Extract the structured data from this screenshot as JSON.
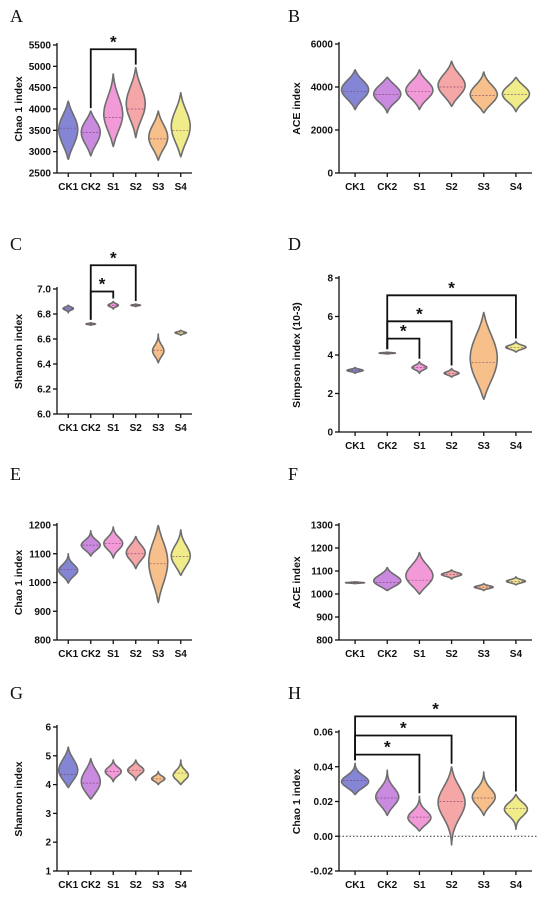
{
  "colors": {
    "CK1": "#8585d6",
    "CK2": "#c98ae0",
    "S1": "#f29ad8",
    "S2": "#f5a6a6",
    "S3": "#f7c08a",
    "S4": "#f0ec8a",
    "outline": "#6e6e6e"
  },
  "chart_data": [
    {
      "panel": "A",
      "type": "violin",
      "ylabel": "Chao 1 index",
      "categories": [
        "CK1",
        "CK2",
        "S1",
        "S2",
        "S3",
        "S4"
      ],
      "ylim": [
        2500,
        5500
      ],
      "yticks": [
        2500,
        3000,
        3500,
        4000,
        4500,
        5000,
        5500
      ],
      "violins": [
        {
          "name": "CK1",
          "min": 2820,
          "max": 4180,
          "median": 3550,
          "modes": [
            {
              "y": 3250,
              "w": 0.8
            },
            {
              "y": 3700,
              "w": 1.0
            }
          ]
        },
        {
          "name": "CK2",
          "min": 2900,
          "max": 3950,
          "median": 3450,
          "modes": [
            {
              "y": 3250,
              "w": 0.7
            },
            {
              "y": 3600,
              "w": 0.9
            }
          ]
        },
        {
          "name": "S1",
          "min": 3120,
          "max": 4820,
          "median": 3800,
          "modes": [
            {
              "y": 3700,
              "w": 1.0
            },
            {
              "y": 4150,
              "w": 0.6
            }
          ]
        },
        {
          "name": "S2",
          "min": 3330,
          "max": 4970,
          "median": 4000,
          "modes": [
            {
              "y": 3950,
              "w": 1.0
            },
            {
              "y": 4400,
              "w": 0.7
            }
          ]
        },
        {
          "name": "S3",
          "min": 2800,
          "max": 3950,
          "median": 3300,
          "modes": [
            {
              "y": 3200,
              "w": 1.0
            },
            {
              "y": 3550,
              "w": 0.7
            }
          ]
        },
        {
          "name": "S4",
          "min": 2880,
          "max": 4380,
          "median": 3500,
          "modes": [
            {
              "y": 3350,
              "w": 0.9
            },
            {
              "y": 3800,
              "w": 0.9
            }
          ]
        }
      ],
      "significance": [
        {
          "from": "CK2",
          "to": "S2",
          "label": "*",
          "level": 5400
        }
      ]
    },
    {
      "panel": "B",
      "type": "violin",
      "ylabel": "ACE index",
      "categories": [
        "CK1",
        "CK2",
        "S1",
        "S2",
        "S3",
        "S4"
      ],
      "ylim": [
        0,
        6000
      ],
      "yticks": [
        0,
        2000,
        4000,
        6000
      ],
      "violins": [
        {
          "name": "CK1",
          "min": 2950,
          "max": 4800,
          "median": 3800,
          "modes": [
            {
              "y": 3600,
              "w": 0.9
            },
            {
              "y": 4100,
              "w": 1.0
            }
          ]
        },
        {
          "name": "CK2",
          "min": 2800,
          "max": 4450,
          "median": 3650,
          "modes": [
            {
              "y": 3500,
              "w": 1.0
            },
            {
              "y": 4000,
              "w": 0.8
            }
          ]
        },
        {
          "name": "S1",
          "min": 2950,
          "max": 4800,
          "median": 3800,
          "modes": [
            {
              "y": 3650,
              "w": 1.0
            },
            {
              "y": 4100,
              "w": 0.8
            }
          ]
        },
        {
          "name": "S2",
          "min": 3100,
          "max": 5200,
          "median": 4000,
          "modes": [
            {
              "y": 3800,
              "w": 1.0
            },
            {
              "y": 4400,
              "w": 0.8
            }
          ]
        },
        {
          "name": "S3",
          "min": 2800,
          "max": 4700,
          "median": 3600,
          "modes": [
            {
              "y": 3400,
              "w": 1.0
            },
            {
              "y": 3900,
              "w": 0.8
            }
          ]
        },
        {
          "name": "S4",
          "min": 2850,
          "max": 4450,
          "median": 3650,
          "modes": [
            {
              "y": 3500,
              "w": 1.0
            },
            {
              "y": 3950,
              "w": 0.8
            }
          ]
        }
      ],
      "significance": []
    },
    {
      "panel": "C",
      "type": "violin",
      "ylabel": "Shannon index",
      "categories": [
        "CK1",
        "CK2",
        "S1",
        "S2",
        "S3",
        "S4"
      ],
      "ylim": [
        6.0,
        7.0
      ],
      "yticks": [
        6.0,
        6.2,
        6.4,
        6.6,
        6.8,
        7.0
      ],
      "tickdecimals": 1,
      "violins": [
        {
          "name": "CK1",
          "min": 6.81,
          "max": 6.87,
          "median": 6.84,
          "modes": [
            {
              "y": 6.845,
              "w": 1.0
            }
          ],
          "scale": 0.55
        },
        {
          "name": "CK2",
          "min": 6.71,
          "max": 6.73,
          "median": 6.72,
          "modes": [
            {
              "y": 6.72,
              "w": 1.0
            }
          ],
          "scale": 0.5
        },
        {
          "name": "S1",
          "min": 6.84,
          "max": 6.9,
          "median": 6.87,
          "modes": [
            {
              "y": 6.87,
              "w": 1.0
            }
          ],
          "scale": 0.55
        },
        {
          "name": "S2",
          "min": 6.86,
          "max": 6.88,
          "median": 6.87,
          "modes": [
            {
              "y": 6.87,
              "w": 1.0
            }
          ],
          "scale": 0.5
        },
        {
          "name": "S3",
          "min": 6.41,
          "max": 6.64,
          "median": 6.51,
          "modes": [
            {
              "y": 6.5,
              "w": 1.0
            }
          ],
          "scale": 0.6
        },
        {
          "name": "S4",
          "min": 6.63,
          "max": 6.67,
          "median": 6.65,
          "modes": [
            {
              "y": 6.65,
              "w": 1.0
            }
          ],
          "scale": 0.6
        }
      ],
      "significance": [
        {
          "from": "CK2",
          "to": "S2",
          "label": "*",
          "level": 7.19
        },
        {
          "from": "CK2",
          "to": "S1",
          "label": "*",
          "level": 6.98
        }
      ]
    },
    {
      "panel": "D",
      "type": "violin",
      "ylabel": "Simpson index  (10-3)",
      "categories": [
        "CK1",
        "CK2",
        "S1",
        "S2",
        "S3",
        "S4"
      ],
      "ylim": [
        0,
        8
      ],
      "yticks": [
        0,
        2,
        4,
        6,
        8
      ],
      "violins": [
        {
          "name": "CK1",
          "min": 3.05,
          "max": 3.35,
          "median": 3.2,
          "modes": [
            {
              "y": 3.2,
              "w": 1.0
            }
          ],
          "scale": 0.6
        },
        {
          "name": "CK2",
          "min": 4.05,
          "max": 4.15,
          "median": 4.1,
          "modes": [
            {
              "y": 4.1,
              "w": 1.0
            }
          ],
          "scale": 0.6
        },
        {
          "name": "S1",
          "min": 3.05,
          "max": 3.65,
          "median": 3.35,
          "modes": [
            {
              "y": 3.35,
              "w": 1.0
            }
          ],
          "scale": 0.55
        },
        {
          "name": "S2",
          "min": 2.85,
          "max": 3.3,
          "median": 3.05,
          "modes": [
            {
              "y": 3.05,
              "w": 1.0
            }
          ],
          "scale": 0.55
        },
        {
          "name": "S3",
          "min": 1.7,
          "max": 6.2,
          "median": 3.6,
          "modes": [
            {
              "y": 3.1,
              "w": 0.9
            },
            {
              "y": 4.6,
              "w": 0.8
            }
          ]
        },
        {
          "name": "S4",
          "min": 4.15,
          "max": 4.7,
          "median": 4.4,
          "modes": [
            {
              "y": 4.4,
              "w": 1.0
            }
          ],
          "scale": 0.75
        }
      ],
      "significance": [
        {
          "from": "CK2",
          "to": "S4",
          "label": "*",
          "level": 7.1
        },
        {
          "from": "CK2",
          "to": "S2",
          "label": "*",
          "level": 5.75
        },
        {
          "from": "CK2",
          "to": "S1",
          "label": "*",
          "level": 4.85
        }
      ]
    },
    {
      "panel": "E",
      "type": "violin",
      "ylabel": "Chao 1 index",
      "categories": [
        "CK1",
        "CK2",
        "S1",
        "S2",
        "S3",
        "S4"
      ],
      "ylim": [
        800,
        1200
      ],
      "yticks": [
        800,
        900,
        1000,
        1100,
        1200
      ],
      "violins": [
        {
          "name": "CK1",
          "min": 998,
          "max": 1100,
          "median": 1045,
          "modes": [
            {
              "y": 1040,
              "w": 1.0
            }
          ]
        },
        {
          "name": "CK2",
          "min": 1092,
          "max": 1180,
          "median": 1130,
          "modes": [
            {
              "y": 1128,
              "w": 1.0
            }
          ]
        },
        {
          "name": "S1",
          "min": 1085,
          "max": 1193,
          "median": 1135,
          "modes": [
            {
              "y": 1135,
              "w": 1.0
            }
          ]
        },
        {
          "name": "S2",
          "min": 1048,
          "max": 1160,
          "median": 1100,
          "modes": [
            {
              "y": 1090,
              "w": 0.9
            },
            {
              "y": 1120,
              "w": 0.8
            }
          ]
        },
        {
          "name": "S3",
          "min": 930,
          "max": 1198,
          "median": 1065,
          "modes": [
            {
              "y": 1020,
              "w": 0.8
            },
            {
              "y": 1110,
              "w": 1.0
            }
          ]
        },
        {
          "name": "S4",
          "min": 1025,
          "max": 1183,
          "median": 1090,
          "modes": [
            {
              "y": 1070,
              "w": 0.9
            },
            {
              "y": 1110,
              "w": 0.8
            }
          ]
        }
      ],
      "significance": []
    },
    {
      "panel": "F",
      "type": "violin",
      "ylabel": "ACE index",
      "categories": [
        "CK1",
        "CK2",
        "S1",
        "S2",
        "S3",
        "S4"
      ],
      "ylim": [
        800,
        1300
      ],
      "yticks": [
        800,
        900,
        1000,
        1100,
        1200,
        1300
      ],
      "violins": [
        {
          "name": "CK1",
          "min": 1045,
          "max": 1053,
          "median": 1049,
          "modes": [
            {
              "y": 1049,
              "w": 1.0
            }
          ],
          "scale": 0.7
        },
        {
          "name": "CK2",
          "min": 1015,
          "max": 1115,
          "median": 1050,
          "modes": [
            {
              "y": 1045,
              "w": 1.0
            },
            {
              "y": 1075,
              "w": 0.6
            }
          ]
        },
        {
          "name": "S1",
          "min": 1000,
          "max": 1180,
          "median": 1060,
          "modes": [
            {
              "y": 1055,
              "w": 1.0
            },
            {
              "y": 1110,
              "w": 0.7
            }
          ]
        },
        {
          "name": "S2",
          "min": 1065,
          "max": 1105,
          "median": 1085,
          "modes": [
            {
              "y": 1085,
              "w": 1.0
            }
          ],
          "scale": 0.75
        },
        {
          "name": "S3",
          "min": 1015,
          "max": 1045,
          "median": 1030,
          "modes": [
            {
              "y": 1030,
              "w": 1.0
            }
          ],
          "scale": 0.7
        },
        {
          "name": "S4",
          "min": 1040,
          "max": 1075,
          "median": 1055,
          "modes": [
            {
              "y": 1055,
              "w": 1.0
            }
          ],
          "scale": 0.7
        }
      ],
      "significance": []
    },
    {
      "panel": "G",
      "type": "violin",
      "ylabel": "Shannon index",
      "categories": [
        "CK1",
        "CK2",
        "S1",
        "S2",
        "S3",
        "S4"
      ],
      "ylim": [
        1,
        6
      ],
      "yticks": [
        1,
        2,
        3,
        4,
        5,
        6
      ],
      "violins": [
        {
          "name": "CK1",
          "min": 3.9,
          "max": 5.3,
          "median": 4.35,
          "modes": [
            {
              "y": 4.3,
              "w": 1.0
            },
            {
              "y": 4.75,
              "w": 0.7
            }
          ]
        },
        {
          "name": "CK2",
          "min": 3.5,
          "max": 4.9,
          "median": 4.05,
          "modes": [
            {
              "y": 3.85,
              "w": 1.0
            },
            {
              "y": 4.35,
              "w": 0.8
            }
          ]
        },
        {
          "name": "S1",
          "min": 4.1,
          "max": 4.85,
          "median": 4.45,
          "modes": [
            {
              "y": 4.45,
              "w": 1.0
            }
          ],
          "scale": 0.85
        },
        {
          "name": "S2",
          "min": 4.15,
          "max": 4.85,
          "median": 4.5,
          "modes": [
            {
              "y": 4.5,
              "w": 1.0
            }
          ],
          "scale": 0.85
        },
        {
          "name": "S3",
          "min": 4.0,
          "max": 4.45,
          "median": 4.2,
          "modes": [
            {
              "y": 4.2,
              "w": 1.0
            }
          ],
          "scale": 0.7
        },
        {
          "name": "S4",
          "min": 4.0,
          "max": 4.85,
          "median": 4.4,
          "modes": [
            {
              "y": 4.3,
              "w": 1.0
            }
          ],
          "scale": 0.8
        }
      ],
      "significance": []
    },
    {
      "panel": "H",
      "type": "violin",
      "ylabel": "Chao 1 index",
      "categories": [
        "CK1",
        "CK2",
        "S1",
        "S2",
        "S3",
        "S4"
      ],
      "ylim": [
        -0.02,
        0.06
      ],
      "yticks": [
        -0.02,
        0.0,
        0.02,
        0.04,
        0.06
      ],
      "tickdecimals": 2,
      "zeroline": true,
      "violins": [
        {
          "name": "CK1",
          "min": 0.024,
          "max": 0.042,
          "median": 0.032,
          "modes": [
            {
              "y": 0.031,
              "w": 1.0
            }
          ]
        },
        {
          "name": "CK2",
          "min": 0.012,
          "max": 0.038,
          "median": 0.022,
          "modes": [
            {
              "y": 0.022,
              "w": 1.0
            }
          ],
          "scale": 0.85
        },
        {
          "name": "S1",
          "min": 0.003,
          "max": 0.023,
          "median": 0.011,
          "modes": [
            {
              "y": 0.01,
              "w": 1.0
            }
          ],
          "scale": 0.85
        },
        {
          "name": "S2",
          "min": -0.005,
          "max": 0.04,
          "median": 0.02,
          "modes": [
            {
              "y": 0.02,
              "w": 1.0
            }
          ]
        },
        {
          "name": "S3",
          "min": 0.012,
          "max": 0.037,
          "median": 0.022,
          "modes": [
            {
              "y": 0.022,
              "w": 1.0
            }
          ],
          "scale": 0.85
        },
        {
          "name": "S4",
          "min": 0.004,
          "max": 0.024,
          "median": 0.016,
          "modes": [
            {
              "y": 0.016,
              "w": 1.0
            }
          ],
          "scale": 0.85
        }
      ],
      "significance": [
        {
          "from": "CK1",
          "to": "S4",
          "label": "*",
          "level": 0.069
        },
        {
          "from": "CK1",
          "to": "S2",
          "label": "*",
          "level": 0.058
        },
        {
          "from": "CK1",
          "to": "S1",
          "label": "*",
          "level": 0.047
        }
      ]
    }
  ]
}
